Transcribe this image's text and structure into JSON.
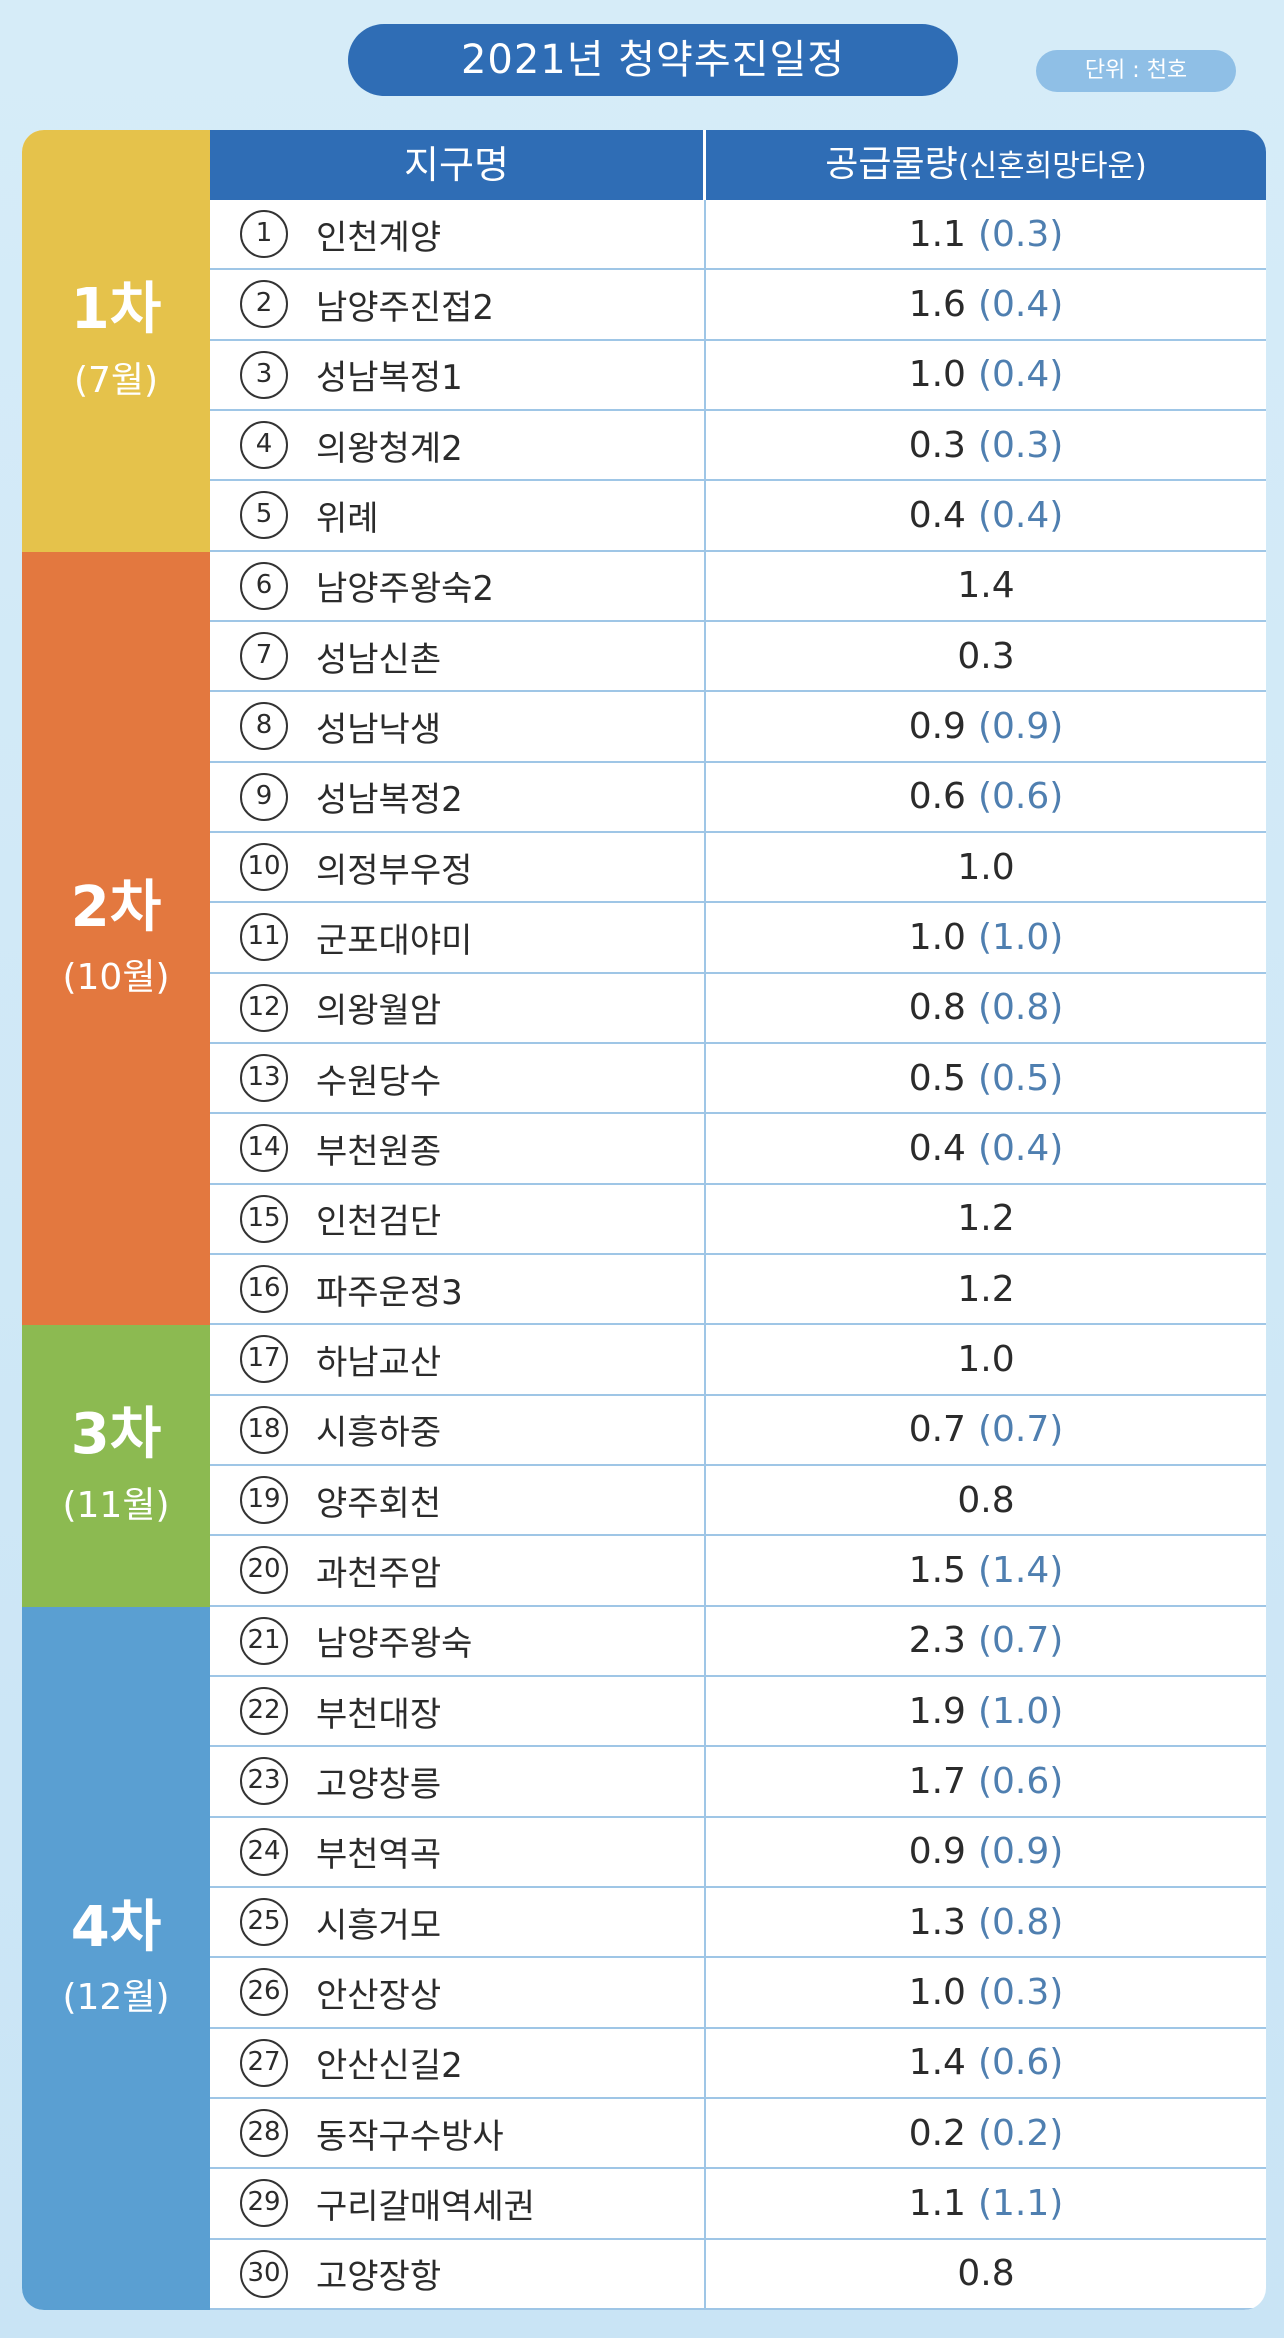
{
  "title": "2021년 청약추진일정",
  "unit": "단위 : 천호",
  "header": {
    "col1": "지구명",
    "col2_main": "공급물량",
    "col2_sub": "(신혼희망타운)"
  },
  "phases": [
    {
      "name": "1차",
      "month": "(7월)",
      "color": "#e5c24b",
      "rows": 5
    },
    {
      "name": "2차",
      "month": "(10월)",
      "color": "#e3783f",
      "rows": 11
    },
    {
      "name": "3차",
      "month": "(11월)",
      "color": "#8cba51",
      "rows": 4
    },
    {
      "name": "4차",
      "month": "(12월)",
      "color": "#5a9fd2",
      "rows": 10
    }
  ],
  "rows": [
    {
      "num": "1",
      "name": "인천계양",
      "supply": "1.1",
      "newlywed": "(0.3)"
    },
    {
      "num": "2",
      "name": "남양주진접2",
      "supply": "1.6",
      "newlywed": "(0.4)"
    },
    {
      "num": "3",
      "name": "성남복정1",
      "supply": "1.0",
      "newlywed": "(0.4)"
    },
    {
      "num": "4",
      "name": "의왕청계2",
      "supply": "0.3",
      "newlywed": "(0.3)"
    },
    {
      "num": "5",
      "name": "위례",
      "supply": "0.4",
      "newlywed": "(0.4)"
    },
    {
      "num": "6",
      "name": "남양주왕숙2",
      "supply": "1.4",
      "newlywed": ""
    },
    {
      "num": "7",
      "name": "성남신촌",
      "supply": "0.3",
      "newlywed": ""
    },
    {
      "num": "8",
      "name": "성남낙생",
      "supply": "0.9",
      "newlywed": "(0.9)"
    },
    {
      "num": "9",
      "name": "성남복정2",
      "supply": "0.6",
      "newlywed": "(0.6)"
    },
    {
      "num": "10",
      "name": "의정부우정",
      "supply": "1.0",
      "newlywed": ""
    },
    {
      "num": "11",
      "name": "군포대야미",
      "supply": "1.0",
      "newlywed": "(1.0)"
    },
    {
      "num": "12",
      "name": "의왕월암",
      "supply": "0.8",
      "newlywed": "(0.8)"
    },
    {
      "num": "13",
      "name": "수원당수",
      "supply": "0.5",
      "newlywed": "(0.5)"
    },
    {
      "num": "14",
      "name": "부천원종",
      "supply": "0.4",
      "newlywed": "(0.4)"
    },
    {
      "num": "15",
      "name": "인천검단",
      "supply": "1.2",
      "newlywed": ""
    },
    {
      "num": "16",
      "name": "파주운정3",
      "supply": "1.2",
      "newlywed": ""
    },
    {
      "num": "17",
      "name": "하남교산",
      "supply": "1.0",
      "newlywed": ""
    },
    {
      "num": "18",
      "name": "시흥하중",
      "supply": "0.7",
      "newlywed": "(0.7)"
    },
    {
      "num": "19",
      "name": "양주회천",
      "supply": "0.8",
      "newlywed": ""
    },
    {
      "num": "20",
      "name": "과천주암",
      "supply": "1.5",
      "newlywed": "(1.4)"
    },
    {
      "num": "21",
      "name": "남양주왕숙",
      "supply": "2.3",
      "newlywed": "(0.7)"
    },
    {
      "num": "22",
      "name": "부천대장",
      "supply": "1.9",
      "newlywed": "(1.0)"
    },
    {
      "num": "23",
      "name": "고양창릉",
      "supply": "1.7",
      "newlywed": "(0.6)"
    },
    {
      "num": "24",
      "name": "부천역곡",
      "supply": "0.9",
      "newlywed": "(0.9)"
    },
    {
      "num": "25",
      "name": "시흥거모",
      "supply": "1.3",
      "newlywed": "(0.8)"
    },
    {
      "num": "26",
      "name": "안산장상",
      "supply": "1.0",
      "newlywed": "(0.3)"
    },
    {
      "num": "27",
      "name": "안산신길2",
      "supply": "1.4",
      "newlywed": "(0.6)"
    },
    {
      "num": "28",
      "name": "동작구수방사",
      "supply": "0.2",
      "newlywed": "(0.2)"
    },
    {
      "num": "29",
      "name": "구리갈매역세권",
      "supply": "1.1",
      "newlywed": "(1.1)"
    },
    {
      "num": "30",
      "name": "고양장항",
      "supply": "0.8",
      "newlywed": ""
    }
  ]
}
